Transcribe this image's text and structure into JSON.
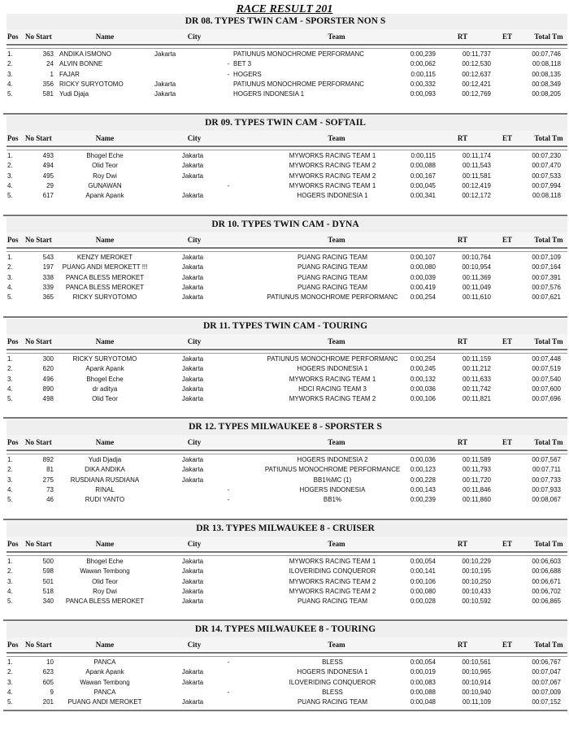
{
  "title": "RACE RESULT 201",
  "columns": [
    "Pos",
    "No Start",
    "Name",
    "City",
    "Team",
    "RT",
    "ET",
    "Total Tm"
  ],
  "sections": [
    {
      "title": "DR 08. TYPES TWIN CAM - SPORSTER NON S",
      "rows": [
        [
          "1.",
          "363",
          "ANDIKA ISMONO",
          "Jakarta",
          "PATIUNUS MONOCHROME PERFORMANC",
          "0:00,239",
          "00:11,737",
          "00:07,746"
        ],
        [
          "2.",
          "24",
          "ALVIN BONNE",
          "-",
          "BET 3",
          "0:00,062",
          "00:12,530",
          "00:08,118"
        ],
        [
          "3.",
          "1",
          "FAJAR",
          "-",
          "HOGERS",
          "0:00,115",
          "00:12,637",
          "00:08,135"
        ],
        [
          "4.",
          "356",
          "RICKY SURYOTOMO",
          "Jakarta",
          "PATIUNUS MONOCHROME PERFORMANC",
          "0:00,332",
          "00:12,421",
          "00:08,349"
        ],
        [
          "5.",
          "581",
          "Yudi Djaja",
          "Jakarta",
          "HOGERS INDONESIA 1",
          "0:00,093",
          "00:12,769",
          "00:08,205"
        ]
      ]
    },
    {
      "title": "DR 09. TYPES TWIN CAM - SOFTAIL",
      "rows": [
        [
          "1.",
          "493",
          "Bhogel Eche",
          "Jakarta",
          "MYWORKS RACING TEAM 1",
          "0:00,115",
          "00:11,174",
          "00:07,230"
        ],
        [
          "2.",
          "494",
          "Olid Teor",
          "Jakarta",
          "MYWORKS RACING TEAM 2",
          "0:00,088",
          "00:11,543",
          "00:07,470"
        ],
        [
          "3.",
          "495",
          "Roy Dwi",
          "Jakarta",
          "MYWORKS RACING TEAM 2",
          "0:00,167",
          "00:11,581",
          "00:07,533"
        ],
        [
          "4.",
          "29",
          "GUNAWAN",
          "-",
          "MYWORKS RACING TEAM 1",
          "0:00,045",
          "00:12,419",
          "00:07,994"
        ],
        [
          "5.",
          "617",
          "Apank Apank",
          "Jakarta",
          "HOGERS INDONESIA 1",
          "0:00,341",
          "00:12,172",
          "00:08,118"
        ]
      ]
    },
    {
      "title": "DR 10. TYPES TWIN CAM - DYNA",
      "rows": [
        [
          "1.",
          "543",
          "KENZY MEROKET",
          "Jakarta",
          "PUANG RACING TEAM",
          "0:00,107",
          "00:10,764",
          "00:07,109"
        ],
        [
          "2.",
          "197",
          "PUANG ANDI MEROKETT !!!",
          "Jakarta",
          "PUANG RACING TEAM",
          "0:00,080",
          "00:10,954",
          "00:07,164"
        ],
        [
          "3.",
          "338",
          "PANCA BLESS MEROKET",
          "Jakarta",
          "PUANG RACING TEAM",
          "0:00,039",
          "00:11,369",
          "00:07,391"
        ],
        [
          "4.",
          "339",
          "PANCA BLESS MEROKET",
          "Jakarta",
          "PUANG RACING TEAM",
          "0:00,419",
          "00:11,049",
          "00:07,576"
        ],
        [
          "5.",
          "365",
          "RICKY SURYOTOMO",
          "Jakarta",
          "PATIUNUS MONOCHROME PERFORMANC",
          "0:00,254",
          "00:11,610",
          "00:07,621"
        ]
      ]
    },
    {
      "title": "DR 11. TYPES TWIN CAM - TOURING",
      "rows": [
        [
          "1.",
          "300",
          "RICKY SURYOTOMO",
          "Jakarta",
          "PATIUNUS MONOCHROME PERFORMANC",
          "0:00,254",
          "00:11,159",
          "00:07,448"
        ],
        [
          "2.",
          "620",
          "Apank Apank",
          "Jakarta",
          "HOGERS INDONESIA 1",
          "0:00,245",
          "00:11,212",
          "00:07,519"
        ],
        [
          "3.",
          "496",
          "Bhogel Eche",
          "Jakarta",
          "MYWORKS RACING TEAM 1",
          "0:00,132",
          "00:11,633",
          "00:07,540"
        ],
        [
          "4.",
          "890",
          "dr aditya",
          "Jakarta",
          "HDCI RACING TEAM 3",
          "0:00,036",
          "00:11,742",
          "00:07,600"
        ],
        [
          "5.",
          "498",
          "Olid Teor",
          "Jakarta",
          "MYWORKS RACING TEAM 2",
          "0:00,106",
          "00:11,821",
          "00:07,696"
        ]
      ]
    },
    {
      "title": "DR 12. TYPES MILWAUKEE 8 - SPORSTER S",
      "rows": [
        [
          "1.",
          "892",
          "Yudi Djadja",
          "Jakarta",
          "HOGERS INDONESIA 2",
          "0:00,036",
          "00:11,589",
          "00:07,567"
        ],
        [
          "2.",
          "81",
          "DIKA ANDIKA",
          "Jakarta",
          "PATIUNUS MONOCHROME PERFORMANCE",
          "0:00,123",
          "00:11,793",
          "00:07,711"
        ],
        [
          "3.",
          "275",
          "RUSDIANA RUSDIANA",
          "Jakarta",
          "BB1%MC (1)",
          "0:00,228",
          "00:11,720",
          "00:07,733"
        ],
        [
          "4.",
          "73",
          "RINAL",
          "-",
          "HOGERS INDONESIA",
          "0:00,143",
          "00:11,846",
          "00:07,933"
        ],
        [
          "5.",
          "46",
          "RUDI YANTO",
          "-",
          "BB1%",
          "0:00,239",
          "00:11,860",
          "00:08,067"
        ]
      ]
    },
    {
      "title": "DR 13. TYPES MILWAUKEE 8 - CRUISER",
      "rows": [
        [
          "1.",
          "500",
          "Bhogel Eche",
          "Jakarta",
          "MYWORKS RACING TEAM 1",
          "0:00,054",
          "00:10,229",
          "00:06,603"
        ],
        [
          "2.",
          "598",
          "Wawan Tembong",
          "Jakarta",
          "ILOVERIDING CONQUEROR",
          "0:00,141",
          "00:10,195",
          "00:06,688"
        ],
        [
          "3.",
          "501",
          "Olid Teor",
          "Jakarta",
          "MYWORKS RACING TEAM 2",
          "0:00,106",
          "00:10,250",
          "00:06,671"
        ],
        [
          "4.",
          "518",
          "Roy Dwi",
          "Jakarta",
          "MYWORKS RACING TEAM 2",
          "0:00,080",
          "00:10,433",
          "00:06,702"
        ],
        [
          "5.",
          "340",
          "PANCA BLESS MEROKET",
          "Jakarta",
          "PUANG RACING TEAM",
          "0:00,028",
          "00:10,592",
          "00:06,865"
        ]
      ]
    },
    {
      "title": "DR 14. TYPES MILWAUKEE 8 - TOURING",
      "rows": [
        [
          "1.",
          "10",
          "PANCA",
          "-",
          "BLESS",
          "0:00,054",
          "00:10,561",
          "00:06,767"
        ],
        [
          "2.",
          "623",
          "Apank Apank",
          "Jakarta",
          "HOGERS INDONESIA 1",
          "0:00,019",
          "00:10,965",
          "00:07,047"
        ],
        [
          "3.",
          "605",
          "Wawan Tembong",
          "Jakarta",
          "ILOVERIDING CONQUEROR",
          "0:00,083",
          "00:10,914",
          "00:07,067"
        ],
        [
          "4.",
          "9",
          "PANCA",
          "-",
          "BLESS",
          "0:00,088",
          "00:10,940",
          "00:07,009"
        ],
        [
          "5.",
          "201",
          "PUANG ANDI MEROKET",
          "Jakarta",
          "PUANG RACING TEAM",
          "0:00,048",
          "00:11,109",
          "00:07,152"
        ]
      ]
    }
  ]
}
